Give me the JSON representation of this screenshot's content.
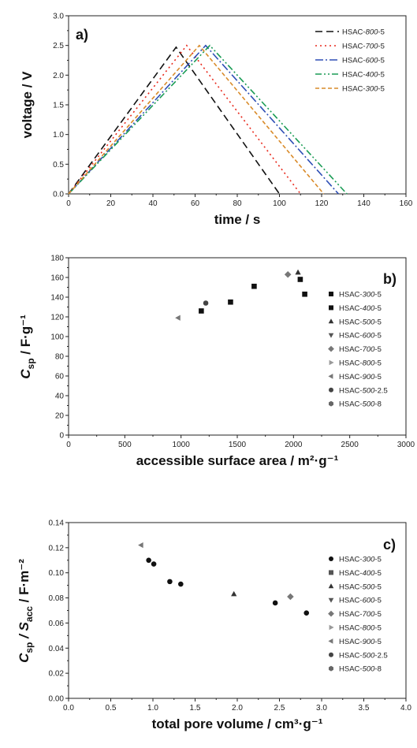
{
  "chart_data": [
    {
      "type": "line",
      "panel_label": "a)",
      "xlabel": "time / s",
      "ylabel": "voltage / V",
      "xlim": [
        0,
        160
      ],
      "ylim": [
        0,
        3.0
      ],
      "xticks": [
        "0",
        "20",
        "40",
        "60",
        "80",
        "100",
        "120",
        "140",
        "160"
      ],
      "yticks": [
        "0.0",
        "0.5",
        "1.0",
        "1.5",
        "2.0",
        "2.5",
        "3.0"
      ],
      "legend_position": "top-right",
      "series": [
        {
          "name_prefix": "HSAC-",
          "name_italic": "800",
          "name_suffix": "-5",
          "color": "#111111",
          "dash": "9,5",
          "x": [
            0,
            51,
            100
          ],
          "y": [
            0,
            2.47,
            0
          ]
        },
        {
          "name_prefix": "HSAC-",
          "name_italic": "700",
          "name_suffix": "-5",
          "color": "#e8291c",
          "dash": "2,4",
          "x": [
            0,
            56,
            110
          ],
          "y": [
            0,
            2.5,
            0
          ]
        },
        {
          "name_prefix": "HSAC-",
          "name_italic": "600",
          "name_suffix": "-5",
          "color": "#2e4fb5",
          "dash": "10,3,2,3",
          "x": [
            0,
            65,
            128
          ],
          "y": [
            0,
            2.5,
            0
          ]
        },
        {
          "name_prefix": "HSAC-",
          "name_italic": "400",
          "name_suffix": "-5",
          "color": "#1a9c55",
          "dash": "8,3,2,3,2,3",
          "x": [
            0,
            67,
            132
          ],
          "y": [
            0,
            2.5,
            0
          ]
        },
        {
          "name_prefix": "HSAC-",
          "name_italic": "300",
          "name_suffix": "-5",
          "color": "#d98b2a",
          "dash": "5,3",
          "x": [
            0,
            62,
            121
          ],
          "y": [
            0,
            2.5,
            0
          ]
        }
      ]
    },
    {
      "type": "scatter",
      "panel_label": "b)",
      "xlabel": "accessible surface area  /  m²·g⁻¹",
      "ylabel_main": "C",
      "ylabel_sub": "sp",
      "ylabel_rest": " / F·g⁻¹",
      "xlim": [
        0,
        3000
      ],
      "ylim": [
        0,
        180
      ],
      "xticks": [
        "0",
        "500",
        "1000",
        "1500",
        "2000",
        "2500",
        "3000"
      ],
      "yticks": [
        "0",
        "20",
        "40",
        "60",
        "80",
        "100",
        "120",
        "140",
        "160",
        "180"
      ],
      "legend_position": "right",
      "series": [
        {
          "name_prefix": "HSAC-",
          "name_italic": "300",
          "name_suffix": "-5",
          "marker": "square",
          "color": "#111111",
          "x": [
            2100
          ],
          "y": [
            143
          ]
        },
        {
          "name_prefix": "HSAC-",
          "name_italic": "400",
          "name_suffix": "-5",
          "marker": "square",
          "color": "#111111",
          "x": [
            1180,
            1440,
            1650,
            2060
          ],
          "y": [
            126,
            135,
            151,
            158
          ]
        },
        {
          "name_prefix": "HSAC-",
          "name_italic": "500",
          "name_suffix": "-5",
          "marker": "triangle-up",
          "color": "#333333",
          "x": [
            2040
          ],
          "y": [
            165
          ]
        },
        {
          "name_prefix": "HSAC-",
          "name_italic": "600",
          "name_suffix": "-5",
          "marker": "triangle-down",
          "color": "#555555",
          "x": [],
          "y": []
        },
        {
          "name_prefix": "HSAC-",
          "name_italic": "700",
          "name_suffix": "-5",
          "marker": "diamond",
          "color": "#777777",
          "x": [
            1950
          ],
          "y": [
            163
          ]
        },
        {
          "name_prefix": "HSAC-",
          "name_italic": "800",
          "name_suffix": "-5",
          "marker": "triangle-right",
          "color": "#999999",
          "x": [],
          "y": []
        },
        {
          "name_prefix": "HSAC-",
          "name_italic": "900",
          "name_suffix": "-5",
          "marker": "triangle-left",
          "color": "#777777",
          "x": [
            975
          ],
          "y": [
            119
          ]
        },
        {
          "name_prefix": "HSAC-",
          "name_italic": "500",
          "name_suffix": "-2.5",
          "marker": "circle",
          "color": "#444444",
          "x": [
            1220
          ],
          "y": [
            134
          ]
        },
        {
          "name_prefix": "HSAC-",
          "name_italic": "500",
          "name_suffix": "-8",
          "marker": "hexagon",
          "color": "#666666",
          "x": [],
          "y": []
        }
      ]
    },
    {
      "type": "scatter",
      "panel_label": "c)",
      "xlabel": "total pore volume / cm³·g⁻¹",
      "ylabel_main": "C",
      "ylabel_sub": "sp",
      "ylabel_mid": " / S",
      "ylabel_sub2": "acc",
      "ylabel_rest": "  /  F·m⁻²",
      "xlim": [
        0,
        4.0
      ],
      "ylim": [
        0,
        0.14
      ],
      "xticks": [
        "0.0",
        "0.5",
        "1.0",
        "1.5",
        "2.0",
        "2.5",
        "3.0",
        "3.5",
        "4.0"
      ],
      "yticks": [
        "0.00",
        "0.02",
        "0.04",
        "0.06",
        "0.08",
        "0.10",
        "0.12",
        "0.14"
      ],
      "legend_position": "right",
      "series": [
        {
          "name_prefix": "HSAC-",
          "name_italic": "300",
          "name_suffix": "-5",
          "marker": "circle",
          "color": "#111111",
          "x": [
            0.95,
            1.01,
            1.2,
            1.33,
            2.45,
            2.82
          ],
          "y": [
            0.11,
            0.107,
            0.093,
            0.091,
            0.076,
            0.068
          ]
        },
        {
          "name_prefix": "HSAC-",
          "name_italic": "400",
          "name_suffix": "-5",
          "marker": "square",
          "color": "#555555",
          "x": [],
          "y": []
        },
        {
          "name_prefix": "HSAC-",
          "name_italic": "500",
          "name_suffix": "-5",
          "marker": "triangle-up",
          "color": "#333333",
          "x": [
            1.96
          ],
          "y": [
            0.083
          ]
        },
        {
          "name_prefix": "HSAC-",
          "name_italic": "600",
          "name_suffix": "-5",
          "marker": "triangle-down",
          "color": "#555555",
          "x": [],
          "y": []
        },
        {
          "name_prefix": "HSAC-",
          "name_italic": "700",
          "name_suffix": "-5",
          "marker": "diamond",
          "color": "#777777",
          "x": [
            2.63
          ],
          "y": [
            0.081
          ]
        },
        {
          "name_prefix": "HSAC-",
          "name_italic": "800",
          "name_suffix": "-5",
          "marker": "triangle-right",
          "color": "#999999",
          "x": [],
          "y": []
        },
        {
          "name_prefix": "HSAC-",
          "name_italic": "900",
          "name_suffix": "-5",
          "marker": "triangle-left",
          "color": "#777777",
          "x": [
            0.86
          ],
          "y": [
            0.122
          ]
        },
        {
          "name_prefix": "HSAC-",
          "name_italic": "500",
          "name_suffix": "-2.5",
          "marker": "circle",
          "color": "#444444",
          "x": [],
          "y": []
        },
        {
          "name_prefix": "HSAC-",
          "name_italic": "500",
          "name_suffix": "-8",
          "marker": "hexagon",
          "color": "#666666",
          "x": [],
          "y": []
        }
      ]
    }
  ]
}
